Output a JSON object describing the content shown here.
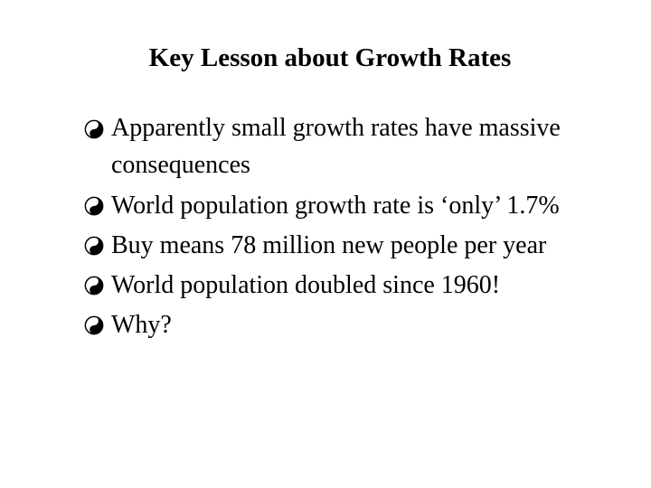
{
  "slide": {
    "title": "Key Lesson about Growth Rates",
    "bullet_icon": "yin-yang-icon",
    "bullets": [
      {
        "line1": "Apparently small growth rates have massive",
        "line2": "consequences"
      },
      {
        "line1": "World population growth rate is ‘only’ 1.7%"
      },
      {
        "line1": "Buy means 78 million new people per year"
      },
      {
        "line1": "World population doubled since 1960!"
      },
      {
        "line1": "Why?"
      }
    ]
  }
}
